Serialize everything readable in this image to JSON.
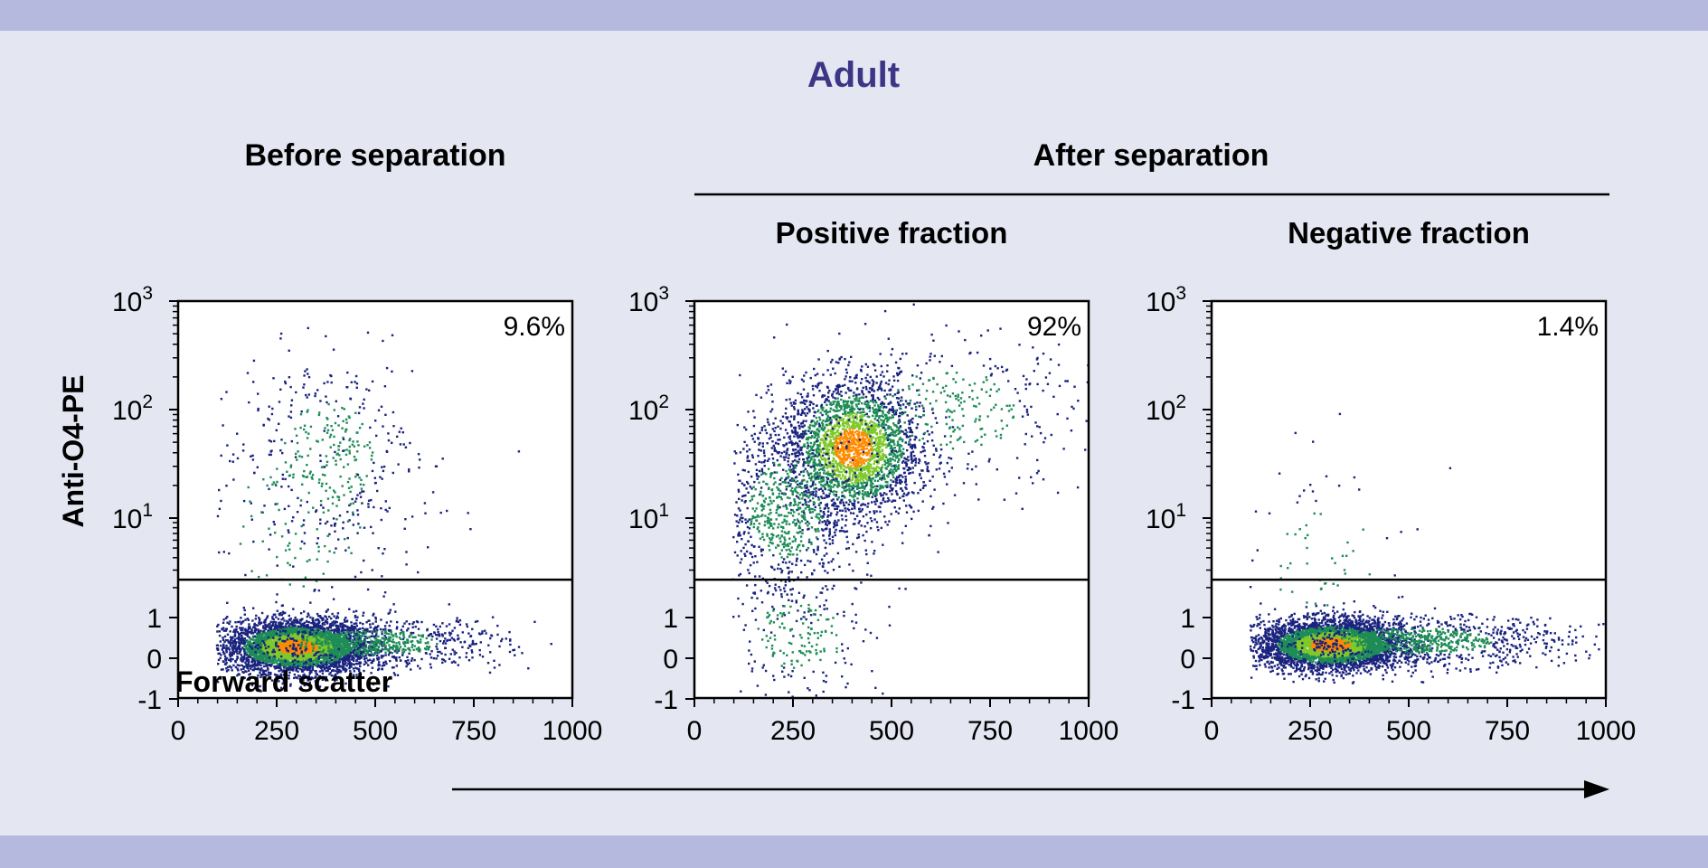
{
  "title": "Adult",
  "colors": {
    "title": "#3d3585",
    "band": "#b4b9dd",
    "panel_bg": "#e4e6f1",
    "density_low": "#1a237e",
    "density_mid": "#1e8c57",
    "density_high": "#7fc92b",
    "density_peak": "#ff8a00"
  },
  "group_labels": {
    "before": "Before separation",
    "after": "After separation"
  },
  "y_axis_label": "Anti-O4-PE",
  "x_axis_label": "Forward scatter",
  "chart_data": [
    {
      "type": "scatter",
      "title": "Before separation",
      "percent_label": "9.6%",
      "gate_y": 2.4,
      "x_ticks": [
        "0",
        "250",
        "500",
        "750",
        "1000"
      ],
      "y_ticks": [
        {
          "base": "",
          "exp": "",
          "text": "-1",
          "value": -1
        },
        {
          "base": "",
          "exp": "",
          "text": "0",
          "value": 0
        },
        {
          "base": "",
          "exp": "",
          "text": "1",
          "value": 1
        },
        {
          "base": "10",
          "exp": "1",
          "text": "",
          "value": 10
        },
        {
          "base": "10",
          "exp": "2",
          "text": "",
          "value": 100
        },
        {
          "base": "10",
          "exp": "3",
          "text": "",
          "value": 1000
        }
      ],
      "xlim": [
        0,
        1000
      ],
      "ylim": [
        -1,
        1000
      ],
      "clusters": [
        {
          "x": 300,
          "y": 0.3,
          "sx": 90,
          "sy": 0.32,
          "n": 4200
        },
        {
          "x": 480,
          "y": 0.4,
          "sx": 170,
          "sy": 0.3,
          "n": 900
        },
        {
          "x": 380,
          "y": 40,
          "sx": 110,
          "sy": 0.45,
          "n": 380
        },
        {
          "x": 300,
          "y": 8,
          "sx": 170,
          "sy": 0.6,
          "n": 180
        }
      ]
    },
    {
      "type": "scatter",
      "title": "Positive fraction",
      "percent_label": "92%",
      "gate_y": 2.4,
      "x_ticks": [
        "0",
        "250",
        "500",
        "750",
        "1000"
      ],
      "y_ticks": [
        {
          "base": "",
          "exp": "",
          "text": "-1",
          "value": -1
        },
        {
          "base": "",
          "exp": "",
          "text": "0",
          "value": 0
        },
        {
          "base": "",
          "exp": "",
          "text": "1",
          "value": 1
        },
        {
          "base": "10",
          "exp": "1",
          "text": "",
          "value": 10
        },
        {
          "base": "10",
          "exp": "2",
          "text": "",
          "value": 100
        },
        {
          "base": "10",
          "exp": "3",
          "text": "",
          "value": 1000
        }
      ],
      "xlim": [
        0,
        1000
      ],
      "ylim": [
        -1,
        1000
      ],
      "clusters": [
        {
          "x": 400,
          "y": 45,
          "sx": 85,
          "sy": 0.32,
          "n": 2600
        },
        {
          "x": 230,
          "y": 12,
          "sx": 90,
          "sy": 0.45,
          "n": 900
        },
        {
          "x": 650,
          "y": 100,
          "sx": 170,
          "sy": 0.35,
          "n": 350
        },
        {
          "x": 260,
          "y": 0.6,
          "sx": 110,
          "sy": 0.8,
          "n": 220
        }
      ]
    },
    {
      "type": "scatter",
      "title": "Negative fraction",
      "percent_label": "1.4%",
      "gate_y": 2.4,
      "x_ticks": [
        "0",
        "250",
        "500",
        "750",
        "1000"
      ],
      "y_ticks": [
        {
          "base": "",
          "exp": "",
          "text": "-1",
          "value": -1
        },
        {
          "base": "",
          "exp": "",
          "text": "0",
          "value": 0
        },
        {
          "base": "",
          "exp": "",
          "text": "1",
          "value": 1
        },
        {
          "base": "10",
          "exp": "1",
          "text": "",
          "value": 10
        },
        {
          "base": "10",
          "exp": "2",
          "text": "",
          "value": 100
        },
        {
          "base": "10",
          "exp": "3",
          "text": "",
          "value": 1000
        }
      ],
      "xlim": [
        0,
        1000
      ],
      "ylim": [
        -1,
        1000
      ],
      "clusters": [
        {
          "x": 300,
          "y": 0.35,
          "sx": 90,
          "sy": 0.3,
          "n": 4200
        },
        {
          "x": 520,
          "y": 0.45,
          "sx": 190,
          "sy": 0.3,
          "n": 1000
        },
        {
          "x": 280,
          "y": 4,
          "sx": 130,
          "sy": 0.5,
          "n": 80
        }
      ]
    }
  ]
}
